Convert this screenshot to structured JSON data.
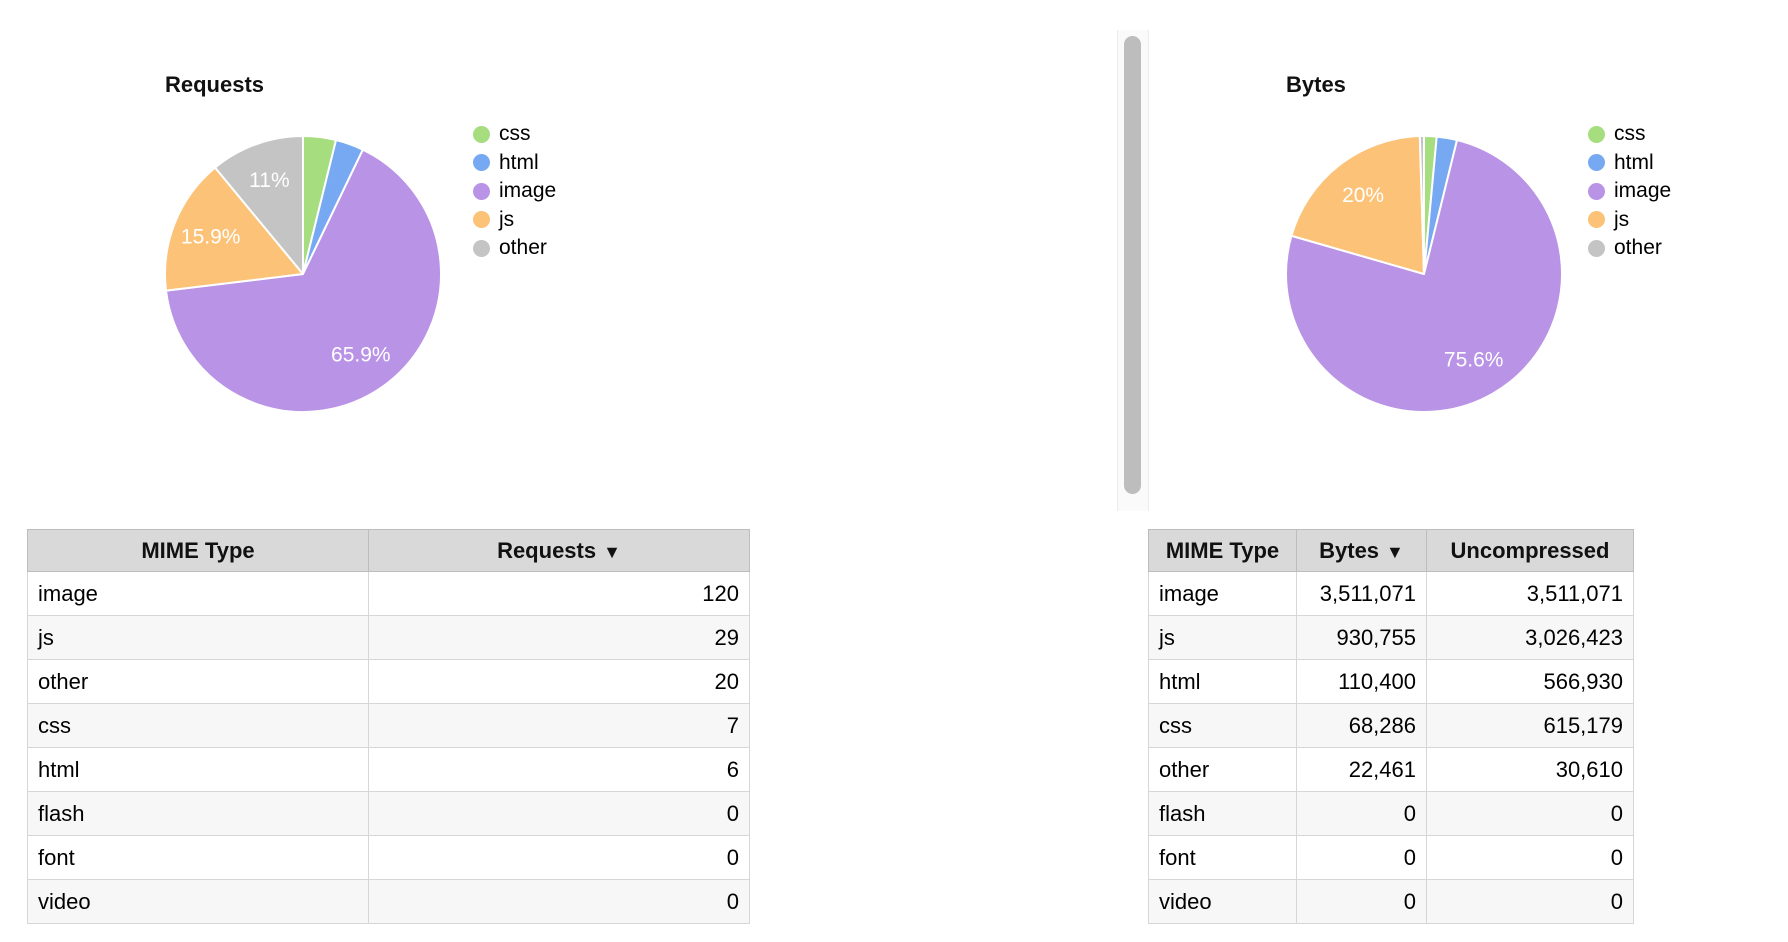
{
  "chart_data": [
    {
      "type": "pie",
      "title": "Requests",
      "labels": [
        "css",
        "html",
        "image",
        "js",
        "other"
      ],
      "values": [
        7,
        6,
        120,
        29,
        20
      ],
      "percent_labels": [
        "",
        "",
        "65.9%",
        "15.9%",
        "11%"
      ],
      "colors": [
        "#a5dd7f",
        "#76a9f2",
        "#b993e6",
        "#fcc278",
        "#c4c4c4"
      ],
      "legend_position": "right",
      "label_color": "#ffffff",
      "start_angle_deg": 0,
      "direction": "clockwise"
    },
    {
      "type": "pie",
      "title": "Bytes",
      "labels": [
        "css",
        "html",
        "image",
        "js",
        "other"
      ],
      "values": [
        68286,
        110400,
        3511071,
        930755,
        22461
      ],
      "percent_labels": [
        "",
        "",
        "75.6%",
        "20%",
        ""
      ],
      "colors": [
        "#a5dd7f",
        "#76a9f2",
        "#b993e6",
        "#fcc278",
        "#c4c4c4"
      ],
      "legend_position": "right",
      "label_color": "#ffffff",
      "start_angle_deg": 0,
      "direction": "clockwise"
    }
  ],
  "tables": [
    {
      "name": "requests",
      "columns": [
        {
          "label": "MIME Type",
          "sort_arrow": ""
        },
        {
          "label": "Requests",
          "sort_arrow": "▼"
        }
      ],
      "rows": [
        [
          "image",
          "120"
        ],
        [
          "js",
          "29"
        ],
        [
          "other",
          "20"
        ],
        [
          "css",
          "7"
        ],
        [
          "html",
          "6"
        ],
        [
          "flash",
          "0"
        ],
        [
          "font",
          "0"
        ],
        [
          "video",
          "0"
        ]
      ]
    },
    {
      "name": "bytes",
      "columns": [
        {
          "label": "MIME Type",
          "sort_arrow": ""
        },
        {
          "label": "Bytes",
          "sort_arrow": "▼"
        },
        {
          "label": "Uncompressed",
          "sort_arrow": ""
        }
      ],
      "rows": [
        [
          "image",
          "3,511,071",
          "3,511,071"
        ],
        [
          "js",
          "930,755",
          "3,026,423"
        ],
        [
          "html",
          "110,400",
          "566,930"
        ],
        [
          "css",
          "68,286",
          "615,179"
        ],
        [
          "other",
          "22,461",
          "30,610"
        ],
        [
          "flash",
          "0",
          "0"
        ],
        [
          "font",
          "0",
          "0"
        ],
        [
          "video",
          "0",
          "0"
        ]
      ]
    }
  ],
  "ui": {
    "background": "#ffffff",
    "header_bg": "#d9d9d9",
    "stripe_bg": "#f7f7f7"
  }
}
